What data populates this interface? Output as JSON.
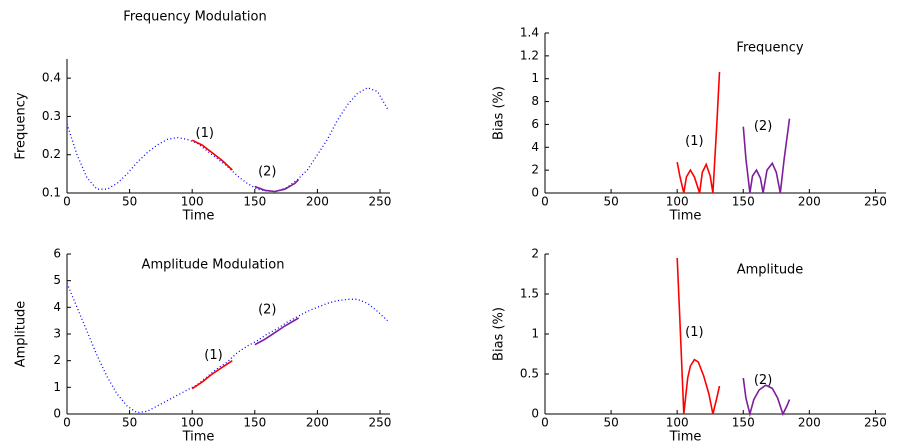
{
  "chart_data": [
    {
      "type": "line",
      "title": "Frequency Modulation",
      "x_label": "Time",
      "y_label": "Frequency",
      "xlim": [
        0,
        258
      ],
      "ylim": [
        0.1,
        0.45
      ],
      "xticks": [
        0,
        50,
        100,
        150,
        200,
        250
      ],
      "yticks": [
        0.1,
        0.2,
        0.3,
        0.4
      ],
      "series": [
        {
          "color": "#0000ff",
          "style": "dotted",
          "x": [
            0,
            8,
            16,
            24,
            32,
            40,
            48,
            56,
            64,
            72,
            80,
            88,
            96,
            104,
            112,
            120,
            128,
            136,
            144,
            152,
            160,
            168,
            176,
            184,
            192,
            200,
            208,
            216,
            224,
            232,
            240,
            248,
            256
          ],
          "values": [
            0.28,
            0.2,
            0.14,
            0.11,
            0.11,
            0.125,
            0.15,
            0.18,
            0.205,
            0.225,
            0.24,
            0.245,
            0.24,
            0.23,
            0.21,
            0.19,
            0.17,
            0.145,
            0.125,
            0.11,
            0.105,
            0.105,
            0.115,
            0.135,
            0.16,
            0.2,
            0.24,
            0.29,
            0.33,
            0.36,
            0.375,
            0.365,
            0.32
          ]
        },
        {
          "color": "#ff0000",
          "style": "solid",
          "x": [
            100,
            108,
            116,
            124,
            132
          ],
          "values": [
            0.238,
            0.225,
            0.205,
            0.185,
            0.16
          ]
        },
        {
          "color": "#7e1e9c",
          "style": "solid",
          "x": [
            150,
            158,
            166,
            174,
            182,
            185
          ],
          "values": [
            0.117,
            0.107,
            0.104,
            0.11,
            0.125,
            0.135
          ]
        }
      ],
      "annotations": [
        {
          "text": "(1)",
          "x": 110,
          "y": 0.255,
          "color": "#ff0000"
        },
        {
          "text": "(2)",
          "x": 160,
          "y": 0.155,
          "color": "#7e1e9c"
        }
      ]
    },
    {
      "type": "line",
      "title": "Frequency",
      "x_label": "Time",
      "y_label": "Bias (%)",
      "xlim": [
        0,
        258
      ],
      "ylim": [
        0,
        1.4
      ],
      "xticks": [
        0,
        50,
        100,
        150,
        200,
        250
      ],
      "yticks": [
        0,
        {
          "value": 0.2,
          "label": "2"
        },
        {
          "value": 0.4,
          "label": "4"
        },
        {
          "value": 0.6,
          "label": "6"
        },
        {
          "value": 0.8,
          "label": "8"
        },
        1,
        1.2,
        1.4
      ],
      "series": [
        {
          "color": "#ff0000",
          "style": "solid",
          "x": [
            100,
            102,
            105,
            107,
            110,
            113,
            117,
            119,
            122,
            125,
            127,
            130,
            132
          ],
          "values": [
            0.27,
            0.15,
            0,
            0.14,
            0.2,
            0.14,
            0,
            0.18,
            0.25,
            0.15,
            0,
            0.6,
            1.06
          ]
        },
        {
          "color": "#7e1e9c",
          "style": "solid",
          "x": [
            150,
            152,
            155,
            157,
            160,
            163,
            165,
            168,
            172,
            175,
            178,
            181,
            185
          ],
          "values": [
            0.58,
            0.3,
            0,
            0.15,
            0.2,
            0.13,
            0,
            0.2,
            0.26,
            0.18,
            0,
            0.3,
            0.65
          ]
        }
      ],
      "annotations": [
        {
          "text": "(1)",
          "x": 113,
          "y": 0.45,
          "color": "#ff0000"
        },
        {
          "text": "(2)",
          "x": 165,
          "y": 0.58,
          "color": "#7e1e9c"
        }
      ]
    },
    {
      "type": "line",
      "title": "Amplitude Modulation",
      "x_label": "Time",
      "y_label": "Amplitude",
      "xlim": [
        0,
        258
      ],
      "ylim": [
        0,
        6
      ],
      "xticks": [
        0,
        50,
        100,
        150,
        200,
        250
      ],
      "yticks": [
        0,
        1,
        2,
        3,
        4,
        5,
        6
      ],
      "series": [
        {
          "color": "#0000ff",
          "style": "dotted",
          "x": [
            0,
            8,
            16,
            24,
            32,
            40,
            48,
            56,
            64,
            72,
            80,
            88,
            96,
            104,
            112,
            120,
            128,
            136,
            144,
            152,
            160,
            168,
            176,
            184,
            192,
            200,
            208,
            216,
            224,
            232,
            240,
            248,
            256
          ],
          "values": [
            4.9,
            4.0,
            3.1,
            2.2,
            1.4,
            0.75,
            0.3,
            0.05,
            0.1,
            0.3,
            0.5,
            0.7,
            0.9,
            1.1,
            1.4,
            1.7,
            1.95,
            2.3,
            2.55,
            2.75,
            3.0,
            3.2,
            3.45,
            3.65,
            3.85,
            4.0,
            4.15,
            4.25,
            4.3,
            4.3,
            4.15,
            3.85,
            3.5
          ]
        },
        {
          "color": "#ff0000",
          "style": "solid",
          "x": [
            100,
            108,
            116,
            124,
            132
          ],
          "values": [
            0.95,
            1.2,
            1.5,
            1.75,
            2.0
          ]
        },
        {
          "color": "#7e1e9c",
          "style": "solid",
          "x": [
            150,
            158,
            166,
            174,
            185
          ],
          "values": [
            2.6,
            2.8,
            3.05,
            3.3,
            3.6
          ]
        }
      ],
      "annotations": [
        {
          "text": "(1)",
          "x": 117,
          "y": 2.2,
          "color": "#ff0000"
        },
        {
          "text": "(2)",
          "x": 160,
          "y": 3.9,
          "color": "#7e1e9c"
        }
      ]
    },
    {
      "type": "line",
      "title": "Amplitude",
      "x_label": "Time",
      "y_label": "Bias (%)",
      "xlim": [
        0,
        258
      ],
      "ylim": [
        0,
        2
      ],
      "xticks": [
        0,
        50,
        100,
        150,
        200,
        250
      ],
      "yticks": [
        0,
        0.5,
        1,
        1.5,
        2
      ],
      "series": [
        {
          "color": "#ff0000",
          "style": "solid",
          "x": [
            100,
            102,
            105,
            108,
            110,
            113,
            116,
            120,
            124,
            127,
            130,
            132
          ],
          "values": [
            1.95,
            1.2,
            0,
            0.45,
            0.6,
            0.68,
            0.65,
            0.48,
            0.25,
            0,
            0.2,
            0.35
          ]
        },
        {
          "color": "#7e1e9c",
          "style": "solid",
          "x": [
            150,
            152,
            155,
            158,
            162,
            167,
            172,
            176,
            180,
            183,
            185
          ],
          "values": [
            0.45,
            0.2,
            0,
            0.18,
            0.3,
            0.36,
            0.32,
            0.2,
            0,
            0.1,
            0.18
          ]
        }
      ],
      "annotations": [
        {
          "text": "(1)",
          "x": 113,
          "y": 1.02,
          "color": "#ff0000"
        },
        {
          "text": "(2)",
          "x": 165,
          "y": 0.42,
          "color": "#7e1e9c"
        }
      ]
    }
  ]
}
